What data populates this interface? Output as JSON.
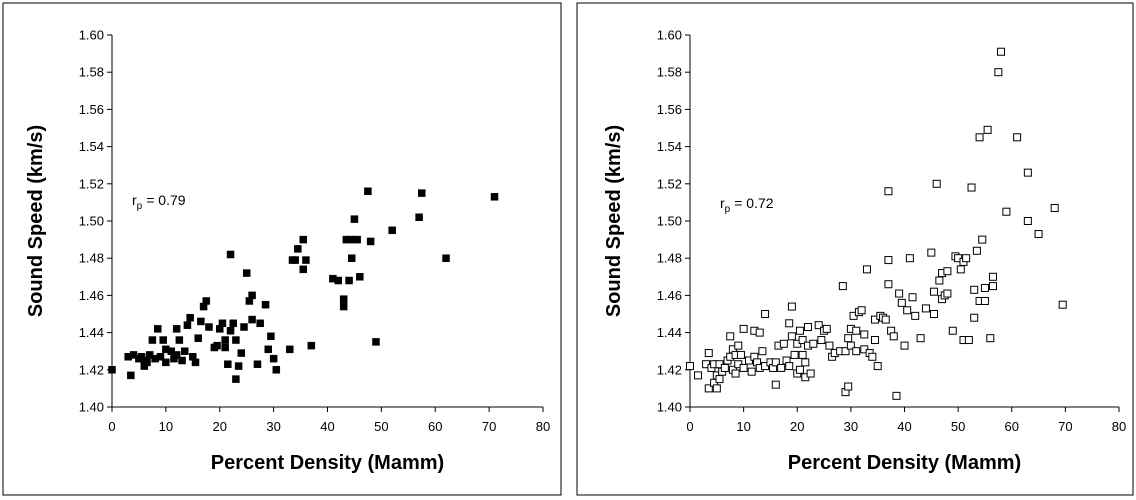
{
  "chart_data": [
    {
      "type": "scatter",
      "marker": "filled-square",
      "color": "#000000",
      "x_label": "Percent Density (Mamm)",
      "y_label": "Sound Speed (km/s)",
      "annotation": {
        "symbol": "r",
        "subscript": "p",
        "text": "= 0.79"
      },
      "xlim": [
        0,
        80
      ],
      "xticks": [
        0,
        10,
        20,
        30,
        40,
        50,
        60,
        70,
        80
      ],
      "ylim": [
        1.4,
        1.6
      ],
      "yticks": [
        {
          "value": 1.4,
          "label": "1.40"
        },
        {
          "value": 1.42,
          "label": "1.42"
        },
        {
          "value": 1.44,
          "label": "1.44"
        },
        {
          "value": 1.46,
          "label": "1.46"
        },
        {
          "value": 1.48,
          "label": "1.48"
        },
        {
          "value": 1.5,
          "label": "1.50"
        },
        {
          "value": 1.52,
          "label": "1.52"
        },
        {
          "value": 1.54,
          "label": "1.54"
        },
        {
          "value": 1.56,
          "label": "1.56"
        },
        {
          "value": 1.58,
          "label": "1.58"
        },
        {
          "value": 1.6,
          "label": "1.60"
        }
      ],
      "x": [
        0,
        3,
        3.5,
        4,
        5,
        5.5,
        6,
        6,
        6.5,
        7,
        7.5,
        8,
        8.5,
        9,
        9.5,
        10,
        10,
        11,
        11.5,
        12,
        12,
        12.5,
        13,
        13.5,
        14,
        14.5,
        15,
        15.5,
        16,
        16.5,
        17,
        17.5,
        18,
        19,
        19.5,
        20,
        20.5,
        21,
        21,
        21.5,
        22,
        22,
        22.5,
        23,
        23,
        23.5,
        24,
        24.5,
        25,
        25.5,
        26,
        26,
        27,
        27.5,
        28.5,
        29,
        29.5,
        30,
        30.5,
        33,
        33.5,
        34,
        34.5,
        35.5,
        35.5,
        36,
        37,
        41,
        42,
        43,
        43,
        43.5,
        44,
        44.5,
        44.5,
        45,
        45.5,
        46,
        47.5,
        48,
        49,
        52,
        57,
        57.5,
        62,
        71
      ],
      "values": [
        1.42,
        1.427,
        1.417,
        1.428,
        1.426,
        1.427,
        1.422,
        1.425,
        1.424,
        1.428,
        1.436,
        1.426,
        1.442,
        1.427,
        1.436,
        1.431,
        1.424,
        1.43,
        1.426,
        1.442,
        1.428,
        1.436,
        1.425,
        1.43,
        1.444,
        1.448,
        1.427,
        1.424,
        1.437,
        1.446,
        1.454,
        1.457,
        1.443,
        1.432,
        1.433,
        1.442,
        1.445,
        1.432,
        1.436,
        1.423,
        1.482,
        1.441,
        1.445,
        1.415,
        1.436,
        1.422,
        1.429,
        1.443,
        1.472,
        1.457,
        1.46,
        1.447,
        1.423,
        1.445,
        1.455,
        1.431,
        1.438,
        1.426,
        1.42,
        1.431,
        1.479,
        1.479,
        1.485,
        1.49,
        1.474,
        1.479,
        1.433,
        1.469,
        1.468,
        1.458,
        1.454,
        1.49,
        1.468,
        1.49,
        1.48,
        1.501,
        1.49,
        1.47,
        1.516,
        1.489,
        1.435,
        1.495,
        1.502,
        1.515,
        1.48,
        1.513
      ]
    },
    {
      "type": "scatter",
      "marker": "hollow-square",
      "color": "#000000",
      "x_label": "Percent Density (Mamm)",
      "y_label": "Sound Speed (km/s)",
      "annotation": {
        "symbol": "r",
        "subscript": "p",
        "text": "= 0.72"
      },
      "xlim": [
        0,
        80
      ],
      "xticks": [
        0,
        10,
        20,
        30,
        40,
        50,
        60,
        70,
        80
      ],
      "ylim": [
        1.4,
        1.6
      ],
      "yticks": [
        {
          "value": 1.4,
          "label": "1.40"
        },
        {
          "value": 1.42,
          "label": "1.42"
        },
        {
          "value": 1.44,
          "label": "1.44"
        },
        {
          "value": 1.46,
          "label": "1.46"
        },
        {
          "value": 1.48,
          "label": "1.48"
        },
        {
          "value": 1.5,
          "label": "1.50"
        },
        {
          "value": 1.52,
          "label": "1.52"
        },
        {
          "value": 1.54,
          "label": "1.54"
        },
        {
          "value": 1.56,
          "label": "1.56"
        },
        {
          "value": 1.58,
          "label": "1.58"
        },
        {
          "value": 1.6,
          "label": "1.60"
        }
      ],
      "x": [
        0,
        1.5,
        3,
        3.5,
        3.5,
        4,
        4.5,
        4.5,
        5,
        5,
        5.5,
        5.5,
        6,
        6.5,
        7,
        7.5,
        7.5,
        8,
        8,
        8.5,
        8.5,
        9,
        9,
        9.5,
        10,
        10,
        11,
        11.5,
        12,
        12,
        12.5,
        13,
        13,
        13.5,
        14,
        14,
        15,
        15.5,
        16,
        16,
        16.5,
        17,
        17.5,
        18,
        18.5,
        18.5,
        19,
        19,
        19.5,
        20,
        20,
        20.5,
        20.5,
        21,
        21,
        21.5,
        21.5,
        22,
        22,
        22.5,
        23,
        24,
        24.5,
        25,
        25.5,
        26,
        26.5,
        27,
        28,
        28.5,
        29,
        29,
        29.5,
        29.5,
        30,
        30,
        30.5,
        31,
        31,
        31.5,
        32,
        32.5,
        32.5,
        33,
        33.5,
        34,
        34.5,
        34.5,
        35,
        35.5,
        36,
        36.5,
        37,
        37,
        37,
        37.5,
        38,
        38.5,
        39,
        39.5,
        40,
        40.5,
        41,
        41.5,
        42,
        43,
        44,
        45,
        45.5,
        45.5,
        46,
        46.5,
        47,
        47,
        47.5,
        48,
        48,
        49,
        49.5,
        50,
        50.5,
        51,
        51,
        51.5,
        52,
        52.5,
        53,
        53,
        53.5,
        54,
        54,
        54.5,
        55,
        55,
        55.5,
        56,
        56.5,
        56.5,
        57.5,
        58,
        59,
        61,
        63,
        63,
        65,
        68,
        69.5
      ],
      "values": [
        1.422,
        1.417,
        1.423,
        1.429,
        1.41,
        1.421,
        1.413,
        1.423,
        1.417,
        1.41,
        1.415,
        1.423,
        1.419,
        1.421,
        1.425,
        1.438,
        1.427,
        1.431,
        1.42,
        1.428,
        1.418,
        1.433,
        1.423,
        1.428,
        1.442,
        1.421,
        1.425,
        1.419,
        1.441,
        1.427,
        1.424,
        1.421,
        1.44,
        1.43,
        1.45,
        1.422,
        1.424,
        1.421,
        1.424,
        1.412,
        1.433,
        1.421,
        1.434,
        1.425,
        1.422,
        1.445,
        1.454,
        1.438,
        1.428,
        1.418,
        1.434,
        1.42,
        1.441,
        1.436,
        1.428,
        1.424,
        1.416,
        1.443,
        1.433,
        1.418,
        1.434,
        1.444,
        1.436,
        1.441,
        1.442,
        1.433,
        1.427,
        1.429,
        1.43,
        1.465,
        1.43,
        1.408,
        1.437,
        1.411,
        1.442,
        1.433,
        1.449,
        1.441,
        1.43,
        1.451,
        1.452,
        1.439,
        1.431,
        1.474,
        1.429,
        1.427,
        1.447,
        1.436,
        1.422,
        1.449,
        1.448,
        1.447,
        1.479,
        1.516,
        1.466,
        1.441,
        1.438,
        1.406,
        1.461,
        1.456,
        1.433,
        1.452,
        1.48,
        1.459,
        1.449,
        1.437,
        1.453,
        1.483,
        1.45,
        1.462,
        1.52,
        1.468,
        1.458,
        1.472,
        1.46,
        1.461,
        1.473,
        1.441,
        1.481,
        1.48,
        1.474,
        1.436,
        1.478,
        1.48,
        1.436,
        1.518,
        1.463,
        1.448,
        1.484,
        1.457,
        1.545,
        1.49,
        1.457,
        1.464,
        1.549,
        1.437,
        1.47,
        1.465,
        1.58,
        1.591,
        1.505,
        1.545,
        1.5,
        1.526,
        1.493,
        1.507,
        1.455
      ]
    }
  ]
}
